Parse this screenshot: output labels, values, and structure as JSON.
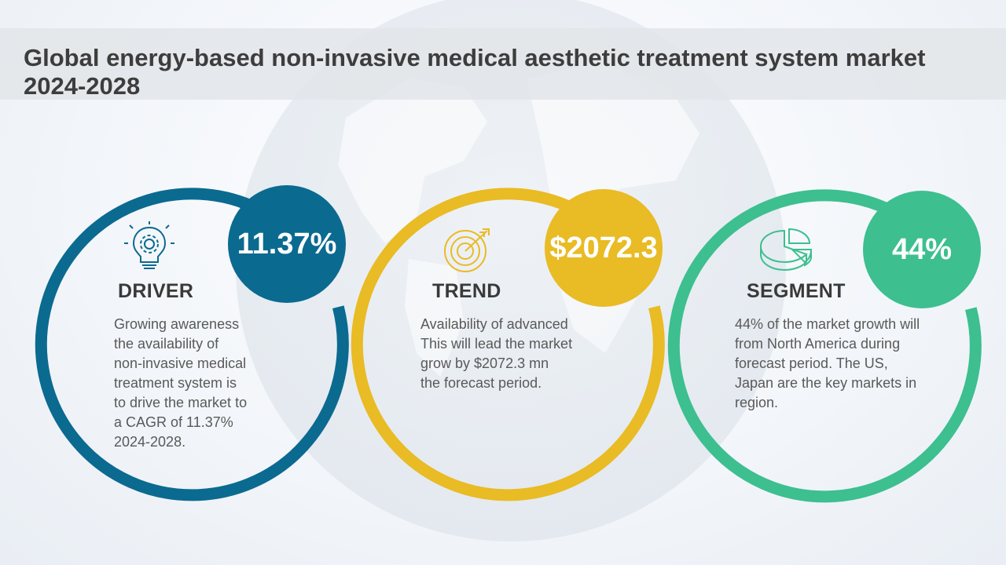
{
  "title": "Global energy-based non-invasive medical aesthetic treatment system market 2024-2028",
  "cards": [
    {
      "heading": "DRIVER",
      "value": "11.37%",
      "icon": "lightbulb-gear-icon",
      "color": "#0b6a8f",
      "lines": [
        "Growing awareness",
        "the availability of",
        "non-invasive medical",
        "treatment system is",
        "to drive the market to",
        "a CAGR of 11.37%",
        "2024-2028."
      ]
    },
    {
      "heading": "TREND",
      "value": "$2072.3",
      "icon": "target-arrow-icon",
      "color": "#e9bb24",
      "lines": [
        "Availability of advanced",
        "This will lead the market",
        "grow by $2072.3 mn",
        "the forecast period."
      ]
    },
    {
      "heading": "SEGMENT",
      "value": "44%",
      "icon": "pie-chart-icon",
      "color": "#3dbf8f",
      "lines": [
        "44% of the market growth will",
        "from North America during",
        "forecast period. The US,",
        "Japan are the key markets in",
        "region."
      ]
    }
  ]
}
